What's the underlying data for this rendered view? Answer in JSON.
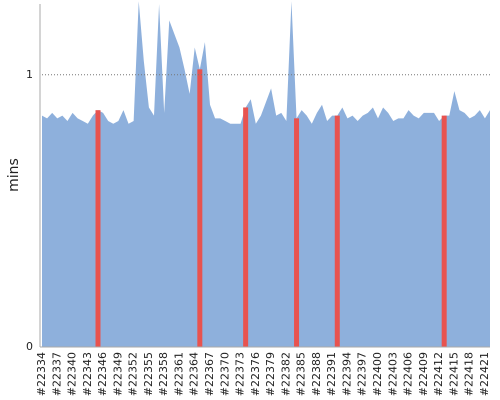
{
  "chart_data": {
    "type": "area",
    "ylabel": "mins",
    "categories": [
      "#22334",
      null,
      null,
      "#22337",
      null,
      null,
      "#22340",
      null,
      null,
      "#22343",
      null,
      null,
      "#22346",
      null,
      null,
      "#22349",
      null,
      null,
      "#22352",
      null,
      null,
      "#22355",
      null,
      null,
      "#22358",
      null,
      null,
      "#22361",
      null,
      null,
      "#22364",
      null,
      null,
      "#22367",
      null,
      null,
      "#22370",
      null,
      null,
      "#22373",
      null,
      null,
      "#22376",
      null,
      null,
      "#22379",
      null,
      null,
      "#22382",
      null,
      null,
      "#22385",
      null,
      null,
      "#22388",
      null,
      null,
      "#22391",
      null,
      null,
      "#22394",
      null,
      null,
      "#22397",
      null,
      null,
      "#22400",
      null,
      null,
      "#22403",
      null,
      null,
      "#22406",
      null,
      null,
      "#22409",
      null,
      null,
      "#22412",
      null,
      null,
      "#22415",
      null,
      null,
      "#22418",
      null,
      null,
      "#22421",
      null
    ],
    "series": [
      {
        "color": "#8eb0dc",
        "values": [
          0.85,
          0.84,
          0.86,
          0.84,
          0.85,
          0.83,
          0.86,
          0.84,
          0.83,
          0.82,
          0.85,
          0.87,
          0.86,
          0.83,
          0.82,
          0.83,
          0.87,
          0.82,
          0.83,
          1.27,
          1.05,
          0.88,
          0.85,
          1.26,
          0.86,
          1.2,
          1.15,
          1.1,
          1.02,
          0.93,
          1.1,
          1.02,
          1.12,
          0.89,
          0.84,
          0.84,
          0.83,
          0.82,
          0.82,
          0.82,
          0.88,
          0.91,
          0.82,
          0.85,
          0.9,
          0.95,
          0.85,
          0.86,
          0.83,
          1.27,
          0.84,
          0.87,
          0.85,
          0.82,
          0.86,
          0.89,
          0.83,
          0.85,
          0.85,
          0.88,
          0.84,
          0.85,
          0.83,
          0.85,
          0.86,
          0.88,
          0.84,
          0.88,
          0.86,
          0.83,
          0.84,
          0.84,
          0.87,
          0.85,
          0.84,
          0.86,
          0.86,
          0.86,
          0.83,
          0.85,
          0.85,
          0.94,
          0.87,
          0.86,
          0.84,
          0.85,
          0.87,
          0.84,
          0.87
        ]
      },
      {
        "type": "bar",
        "color": "#e8534f",
        "values": [
          null,
          null,
          null,
          null,
          null,
          null,
          null,
          null,
          null,
          null,
          null,
          0.87,
          null,
          null,
          null,
          null,
          null,
          null,
          null,
          null,
          null,
          null,
          null,
          null,
          null,
          null,
          null,
          null,
          null,
          null,
          null,
          1.02,
          null,
          null,
          null,
          null,
          null,
          null,
          null,
          null,
          0.88,
          null,
          null,
          null,
          null,
          null,
          null,
          null,
          null,
          null,
          0.84,
          null,
          null,
          null,
          null,
          null,
          null,
          null,
          0.85,
          null,
          null,
          null,
          null,
          null,
          null,
          null,
          null,
          null,
          null,
          null,
          null,
          null,
          null,
          null,
          null,
          null,
          null,
          null,
          null,
          0.85,
          null,
          null,
          null,
          null,
          null,
          null,
          null,
          null,
          null
        ]
      }
    ],
    "ylim": [
      0,
      1.26
    ],
    "yticks": [
      0,
      1
    ],
    "grid": true
  }
}
